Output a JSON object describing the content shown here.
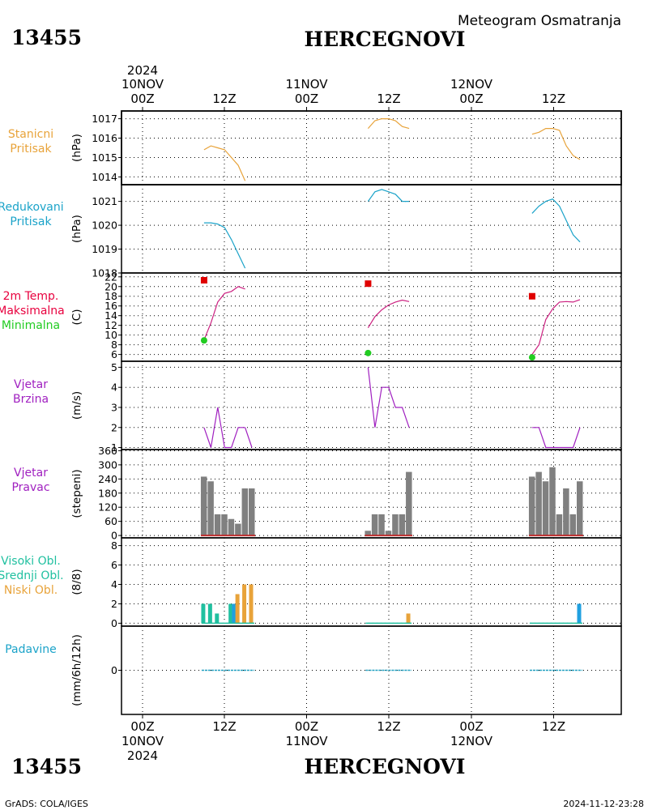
{
  "header": {
    "station_id": "13455",
    "station_name": "HERCEGNOVI",
    "subtitle": "Meteogram Osmatranja"
  },
  "footer": {
    "station_id": "13455",
    "station_name": "HERCEGNOVI",
    "credit": "GrADS: COLA/IGES",
    "timestamp": "2024-11-12-23:28"
  },
  "colors": {
    "pressure": "#e8a33a",
    "reduced_pressure": "#1ba3c9",
    "temp_label": "#e8003e",
    "temp_line": "#cc2080",
    "tmax": "#e00000",
    "tmin": "#22cc22",
    "wind": "#a020c0",
    "bars": "#808080",
    "high_cloud": "#20c0a0",
    "mid_cloud": "#20a0e0",
    "low_cloud": "#e8a33a",
    "precip": "#20a0c0"
  },
  "time_axis": {
    "top_year": "2024",
    "top_dates": [
      "10NOV",
      "11NOV",
      "12NOV"
    ],
    "top_hours": [
      "00Z",
      "12Z",
      "00Z",
      "12Z",
      "00Z",
      "12Z"
    ],
    "bottom_hours": [
      "00Z",
      "12Z",
      "00Z",
      "12Z",
      "00Z",
      "12Z"
    ],
    "bottom_dates": [
      "10NOV",
      "11NOV",
      "12NOV"
    ],
    "bottom_year": "2024"
  },
  "chart_data": [
    {
      "id": "station-pressure",
      "type": "line",
      "label_lines": [
        "Stanicni",
        "Pritisak"
      ],
      "ylabel": "(hPa)",
      "yticks": [
        "1014",
        "1015",
        "1016",
        "1017"
      ],
      "ylim": [
        1013.6,
        1017.4
      ],
      "series": [
        {
          "name": "day1",
          "x": [
            9,
            10,
            11,
            12,
            13,
            14,
            15
          ],
          "y": [
            1015.4,
            1015.6,
            1015.5,
            1015.4,
            1015.0,
            1014.6,
            1013.8
          ]
        },
        {
          "name": "day2",
          "x": [
            33,
            34,
            35,
            36,
            37,
            38,
            39
          ],
          "y": [
            1016.5,
            1016.9,
            1017.0,
            1017.0,
            1016.9,
            1016.6,
            1016.5
          ]
        },
        {
          "name": "day3",
          "x": [
            57,
            58,
            59,
            60,
            61,
            62,
            63,
            64
          ],
          "y": [
            1016.2,
            1016.3,
            1016.5,
            1016.5,
            1016.4,
            1015.6,
            1015.1,
            1014.9
          ]
        }
      ]
    },
    {
      "id": "reduced-pressure",
      "type": "line",
      "label_lines": [
        "Redukovani",
        "Pritisak"
      ],
      "ylabel": "(hPa)",
      "yticks": [
        "1018",
        "1019",
        "1020",
        "1021"
      ],
      "ylim": [
        1018.0,
        1021.7
      ],
      "series": [
        {
          "name": "day1",
          "x": [
            9,
            10,
            11,
            12,
            13,
            14,
            15
          ],
          "y": [
            1020.1,
            1020.1,
            1020.05,
            1019.9,
            1019.4,
            1018.8,
            1018.2
          ]
        },
        {
          "name": "day2",
          "x": [
            33,
            34,
            35,
            36,
            37,
            38,
            39
          ],
          "y": [
            1021.0,
            1021.4,
            1021.5,
            1021.4,
            1021.3,
            1021.0,
            1021.0
          ]
        },
        {
          "name": "day3",
          "x": [
            57,
            58,
            59,
            60,
            61,
            62,
            63,
            64
          ],
          "y": [
            1020.5,
            1020.8,
            1021.0,
            1021.1,
            1020.8,
            1020.2,
            1019.6,
            1019.3
          ]
        }
      ]
    },
    {
      "id": "temperature",
      "type": "line",
      "label_lines": [
        "2m Temp.",
        "Maksimalna",
        "Minimalna"
      ],
      "ylabel": "(C)",
      "yticks": [
        "6",
        "8",
        "10",
        "12",
        "14",
        "16",
        "18",
        "20",
        "22"
      ],
      "ylim": [
        4.6,
        22.8
      ],
      "series": [
        {
          "name": "day1",
          "x": [
            9,
            10,
            11,
            12,
            13,
            14,
            15
          ],
          "y": [
            9.0,
            12.5,
            16.8,
            18.6,
            19.0,
            20.0,
            19.5
          ]
        },
        {
          "name": "day2",
          "x": [
            33,
            34,
            35,
            36,
            37,
            38,
            39
          ],
          "y": [
            11.5,
            13.8,
            15.2,
            16.2,
            16.8,
            17.2,
            16.9
          ]
        },
        {
          "name": "day3",
          "x": [
            57,
            58,
            59,
            60,
            61,
            62,
            63,
            64
          ],
          "y": [
            6.0,
            8.0,
            13.2,
            15.4,
            16.8,
            16.9,
            16.8,
            17.3
          ]
        }
      ],
      "tmax": [
        {
          "x": 9,
          "y": 21.3
        },
        {
          "x": 33,
          "y": 20.6
        },
        {
          "x": 57,
          "y": 18.0
        }
      ],
      "tmin": [
        {
          "x": 9,
          "y": 8.9
        },
        {
          "x": 33,
          "y": 6.3
        },
        {
          "x": 57,
          "y": 5.4
        }
      ]
    },
    {
      "id": "wind-speed",
      "type": "line",
      "label_lines": [
        "Vjetar",
        "Brzina"
      ],
      "ylabel": "(m/s)",
      "yticks": [
        "1",
        "2",
        "3",
        "4",
        "5"
      ],
      "ylim": [
        0.9,
        5.3
      ],
      "series": [
        {
          "name": "day1",
          "x": [
            9,
            10,
            11,
            12,
            13,
            14,
            15
          ],
          "y": [
            2,
            1,
            3,
            1,
            1,
            2,
            2
          ]
        },
        {
          "name": "day1b",
          "x": [
            15,
            16
          ],
          "y": [
            2,
            1
          ]
        },
        {
          "name": "day2",
          "x": [
            33,
            34,
            35,
            36,
            37,
            38,
            39
          ],
          "y": [
            5,
            2,
            4,
            4,
            3,
            3,
            2
          ]
        },
        {
          "name": "day3",
          "x": [
            57,
            58,
            59,
            60,
            61,
            62,
            63,
            64
          ],
          "y": [
            2,
            2,
            1,
            1,
            1,
            1,
            1,
            2
          ]
        }
      ]
    },
    {
      "id": "wind-direction",
      "type": "bar",
      "label_lines": [
        "Vjetar",
        "Pravac"
      ],
      "ylabel": "(stepeni)",
      "yticks": [
        "0",
        "60",
        "120",
        "180",
        "240",
        "300",
        "360"
      ],
      "ylim": [
        -10,
        365
      ],
      "bars": [
        {
          "x": 9,
          "value": 250
        },
        {
          "x": 10,
          "value": 230
        },
        {
          "x": 11,
          "value": 90
        },
        {
          "x": 12,
          "value": 90
        },
        {
          "x": 13,
          "value": 70
        },
        {
          "x": 14,
          "value": 50
        },
        {
          "x": 15,
          "value": 200
        },
        {
          "x": 16,
          "value": 200
        },
        {
          "x": 33,
          "value": 20
        },
        {
          "x": 34,
          "value": 90
        },
        {
          "x": 35,
          "value": 90
        },
        {
          "x": 36,
          "value": 20
        },
        {
          "x": 37,
          "value": 90
        },
        {
          "x": 38,
          "value": 90
        },
        {
          "x": 39,
          "value": 270
        },
        {
          "x": 57,
          "value": 250
        },
        {
          "x": 58,
          "value": 270
        },
        {
          "x": 59,
          "value": 230
        },
        {
          "x": 60,
          "value": 290
        },
        {
          "x": 61,
          "value": 90
        },
        {
          "x": 62,
          "value": 200
        },
        {
          "x": 63,
          "value": 90
        },
        {
          "x": 64,
          "value": 230
        }
      ]
    },
    {
      "id": "clouds",
      "type": "bar",
      "label_lines": [
        "Visoki Obl.",
        "Srednji Obl.",
        "Niski Obl."
      ],
      "ylabel": "(8/8)",
      "yticks": [
        "0",
        "2",
        "4",
        "6",
        "8"
      ],
      "ylim": [
        -0.3,
        8.8
      ],
      "high": [
        {
          "x": 9,
          "value": 2
        },
        {
          "x": 10,
          "value": 2
        },
        {
          "x": 11,
          "value": 1
        },
        {
          "x": 13,
          "value": 2
        }
      ],
      "mid": [
        {
          "x": 13.5,
          "value": 2
        },
        {
          "x": 64,
          "value": 2
        }
      ],
      "low": [
        {
          "x": 14,
          "value": 3
        },
        {
          "x": 15,
          "value": 4
        },
        {
          "x": 16,
          "value": 4
        },
        {
          "x": 39,
          "value": 1
        }
      ]
    },
    {
      "id": "precipitation",
      "type": "bar",
      "label_lines": [
        "Padavine"
      ],
      "ylabel": "(mm/6h/12h)",
      "yticks": [
        "0"
      ],
      "ylim": [
        -2,
        2
      ],
      "segments": [
        [
          9,
          16
        ],
        [
          33,
          39
        ],
        [
          57,
          64
        ]
      ]
    }
  ]
}
